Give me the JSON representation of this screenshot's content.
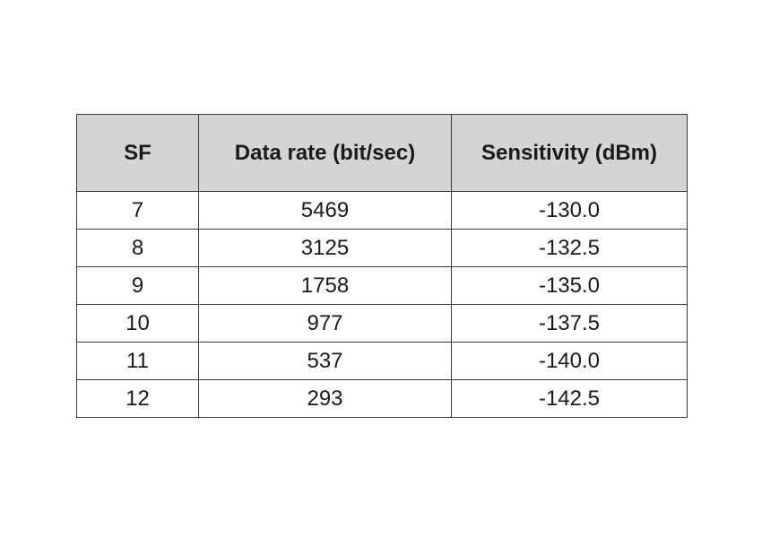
{
  "table": {
    "headers": [
      "SF",
      "Data rate (bit/sec)",
      "Sensitivity (dBm)"
    ],
    "rows": [
      [
        "7",
        "5469",
        "-130.0"
      ],
      [
        "8",
        "3125",
        "-132.5"
      ],
      [
        "9",
        "1758",
        "-135.0"
      ],
      [
        "10",
        "977",
        "-137.5"
      ],
      [
        "11",
        "537",
        "-140.0"
      ],
      [
        "12",
        "293",
        "-142.5"
      ]
    ]
  },
  "chart_data": {
    "type": "table",
    "columns": [
      "SF",
      "Data rate (bit/sec)",
      "Sensitivity (dBm)"
    ],
    "rows": [
      [
        7,
        5469,
        -130.0
      ],
      [
        8,
        3125,
        -132.5
      ],
      [
        9,
        1758,
        -135.0
      ],
      [
        10,
        977,
        -137.5
      ],
      [
        11,
        537,
        -140.0
      ],
      [
        12,
        293,
        -142.5
      ]
    ]
  }
}
